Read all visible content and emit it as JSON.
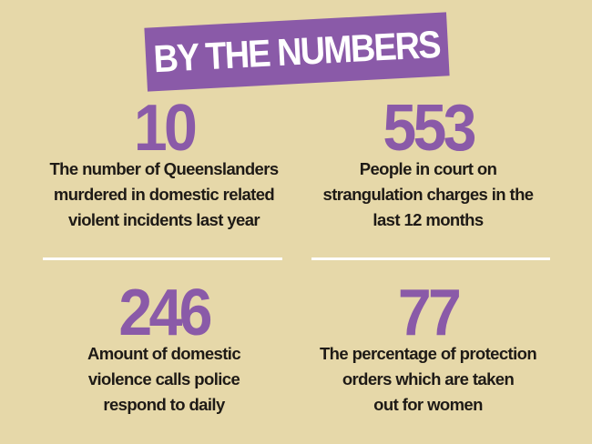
{
  "banner": {
    "title": "BY THE NUMBERS"
  },
  "colors": {
    "background": "#e6d8a9",
    "accent": "#8a5aa8",
    "text": "#1e1a16",
    "divider": "#ffffff"
  },
  "stats": [
    {
      "number": "10",
      "lines": [
        "The number of Queenslanders",
        "murdered in domestic related",
        "violent incidents last year"
      ]
    },
    {
      "number": "553",
      "lines": [
        "People in court on",
        "strangulation charges in the",
        "last 12 months"
      ]
    },
    {
      "number": "246",
      "lines": [
        "Amount of domestic",
        "violence calls police",
        "respond to daily"
      ]
    },
    {
      "number": "77",
      "lines": [
        "The percentage of protection",
        "orders which are taken",
        "out for women"
      ]
    }
  ]
}
